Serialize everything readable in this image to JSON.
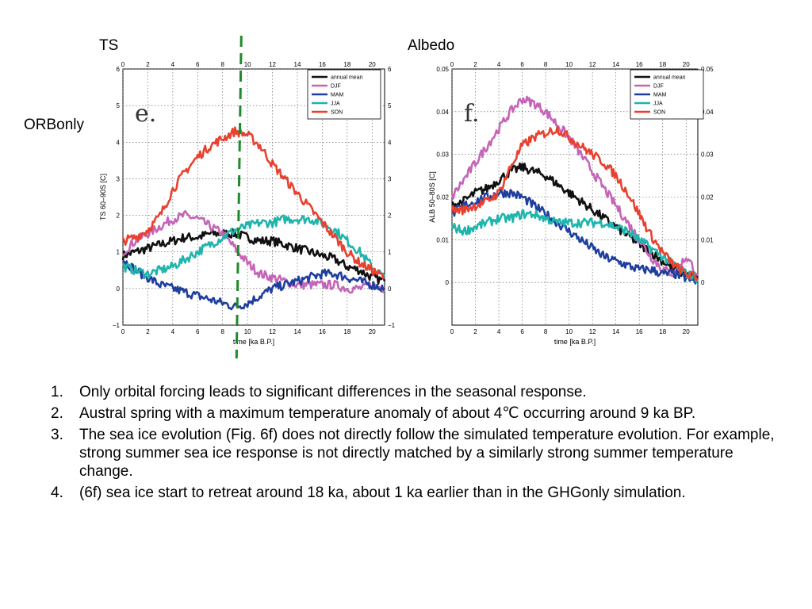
{
  "labels": {
    "ts": "TS",
    "albedo": "Albedo",
    "orbonly": "ORBonly"
  },
  "colors": {
    "annual mean": "#111111",
    "DJF": "#c565b8",
    "MAM": "#1f3f9f",
    "JJA": "#1fb5ac",
    "SON": "#e8412f",
    "marker": "#1f8a2a"
  },
  "chart_data": [
    {
      "type": "line",
      "panel_letter": "e.",
      "xlabel": "time [ka B.P.]",
      "ylabel": "TS  60–90S [C]",
      "xlim": [
        0,
        21
      ],
      "ylim": [
        -1,
        6
      ],
      "xticks": [
        "0",
        "2",
        "4",
        "6",
        "8",
        "10",
        "12",
        "14",
        "16",
        "18",
        "20"
      ],
      "yticks_left": [
        "−1",
        "0",
        "1",
        "2",
        "3",
        "4",
        "5",
        "6"
      ],
      "yticks_right": [
        "−1",
        "0",
        "1",
        "2",
        "3",
        "4",
        "5",
        "6"
      ],
      "legend": [
        "annual mean",
        "DJF",
        "MAM",
        "JJA",
        "SON"
      ],
      "legend_position": "top-right",
      "grid": true,
      "marker_line_x": 9.5,
      "x": [
        0,
        1,
        2,
        3,
        4,
        5,
        6,
        7,
        8,
        9,
        10,
        11,
        12,
        13,
        14,
        15,
        16,
        17,
        18,
        19,
        20,
        21
      ],
      "series": [
        {
          "name": "annual mean",
          "values": [
            0.9,
            1.0,
            1.1,
            1.2,
            1.3,
            1.4,
            1.4,
            1.5,
            1.5,
            1.5,
            1.4,
            1.3,
            1.3,
            1.2,
            1.1,
            1.0,
            0.9,
            0.8,
            0.6,
            0.5,
            0.3,
            0.2
          ]
        },
        {
          "name": "DJF",
          "values": [
            1.0,
            1.3,
            1.5,
            1.7,
            1.9,
            2.0,
            1.9,
            1.7,
            1.5,
            1.1,
            0.7,
            0.4,
            0.3,
            0.2,
            0.1,
            0.1,
            0.1,
            0.1,
            0.0,
            0.0,
            0.1,
            0.0
          ]
        },
        {
          "name": "MAM",
          "values": [
            0.8,
            0.5,
            0.3,
            0.1,
            0.0,
            -0.1,
            -0.2,
            -0.3,
            -0.4,
            -0.5,
            -0.4,
            -0.2,
            0.0,
            0.1,
            0.2,
            0.3,
            0.4,
            0.4,
            0.3,
            0.2,
            0.1,
            0.0
          ]
        },
        {
          "name": "JJA",
          "values": [
            0.6,
            0.5,
            0.4,
            0.5,
            0.6,
            0.8,
            1.0,
            1.2,
            1.4,
            1.6,
            1.7,
            1.8,
            1.8,
            1.9,
            1.9,
            1.9,
            1.8,
            1.6,
            1.3,
            1.0,
            0.6,
            0.3
          ]
        },
        {
          "name": "SON",
          "values": [
            1.3,
            1.4,
            1.6,
            2.0,
            2.7,
            3.2,
            3.6,
            3.9,
            4.1,
            4.3,
            4.2,
            3.9,
            3.4,
            3.0,
            2.6,
            2.2,
            1.8,
            1.4,
            1.0,
            0.7,
            0.5,
            0.3
          ]
        }
      ]
    },
    {
      "type": "line",
      "panel_letter": "f.",
      "xlabel": "time [ka B.P.]",
      "ylabel": "ALB  50–80S [C]",
      "xlim": [
        0,
        21
      ],
      "ylim": [
        -0.01,
        0.05
      ],
      "xticks": [
        "0",
        "2",
        "4",
        "6",
        "8",
        "10",
        "12",
        "14",
        "16",
        "18",
        "20"
      ],
      "yticks_left": [
        "0",
        "0.01",
        "0.02",
        "0.03",
        "0.04",
        "0.05"
      ],
      "yticks_right": [
        "0",
        "0.01",
        "0.02",
        "0.03",
        "0.04",
        "0.05"
      ],
      "legend": [
        "annual mean",
        "DJF",
        "MAM",
        "JJA",
        "SON"
      ],
      "legend_position": "top-right",
      "grid": true,
      "x": [
        0,
        1,
        2,
        3,
        4,
        5,
        6,
        7,
        8,
        9,
        10,
        11,
        12,
        13,
        14,
        15,
        16,
        17,
        18,
        19,
        20,
        21
      ],
      "series": [
        {
          "name": "annual mean",
          "values": [
            0.018,
            0.019,
            0.021,
            0.022,
            0.024,
            0.026,
            0.027,
            0.026,
            0.025,
            0.023,
            0.021,
            0.019,
            0.017,
            0.015,
            0.013,
            0.011,
            0.009,
            0.007,
            0.005,
            0.003,
            0.002,
            0.001
          ]
        },
        {
          "name": "DJF",
          "values": [
            0.02,
            0.024,
            0.028,
            0.032,
            0.036,
            0.04,
            0.043,
            0.042,
            0.04,
            0.037,
            0.034,
            0.03,
            0.026,
            0.022,
            0.018,
            0.014,
            0.01,
            0.006,
            0.003,
            0.002,
            0.006,
            0.002
          ]
        },
        {
          "name": "MAM",
          "values": [
            0.016,
            0.018,
            0.019,
            0.02,
            0.021,
            0.021,
            0.02,
            0.018,
            0.016,
            0.014,
            0.012,
            0.01,
            0.008,
            0.006,
            0.005,
            0.004,
            0.003,
            0.003,
            0.002,
            0.002,
            0.001,
            0.0
          ]
        },
        {
          "name": "JJA",
          "values": [
            0.013,
            0.012,
            0.013,
            0.014,
            0.015,
            0.015,
            0.016,
            0.016,
            0.015,
            0.014,
            0.014,
            0.014,
            0.014,
            0.014,
            0.013,
            0.012,
            0.01,
            0.008,
            0.006,
            0.004,
            0.002,
            0.001
          ]
        },
        {
          "name": "SON",
          "values": [
            0.017,
            0.017,
            0.018,
            0.019,
            0.021,
            0.027,
            0.032,
            0.034,
            0.035,
            0.036,
            0.034,
            0.032,
            0.03,
            0.028,
            0.025,
            0.021,
            0.016,
            0.011,
            0.007,
            0.004,
            0.002,
            0.001
          ]
        }
      ]
    }
  ],
  "notes": [
    {
      "num": "1.",
      "text": "Only orbital forcing leads to significant differences in the seasonal response."
    },
    {
      "num": "2.",
      "text": "Austral spring with a maximum temperature anomaly of about 4℃ occurring around 9 ka BP."
    },
    {
      "num": "3.",
      "text": "The sea ice evolution (Fig. 6f) does not directly follow the simulated temperature evolution. For example, strong summer sea ice response is not directly matched by a similarly strong summer temperature change."
    },
    {
      "num": "4.",
      "text": "(6f) sea ice start to retreat around 18 ka, about 1 ka earlier than in the GHGonly simulation."
    }
  ]
}
